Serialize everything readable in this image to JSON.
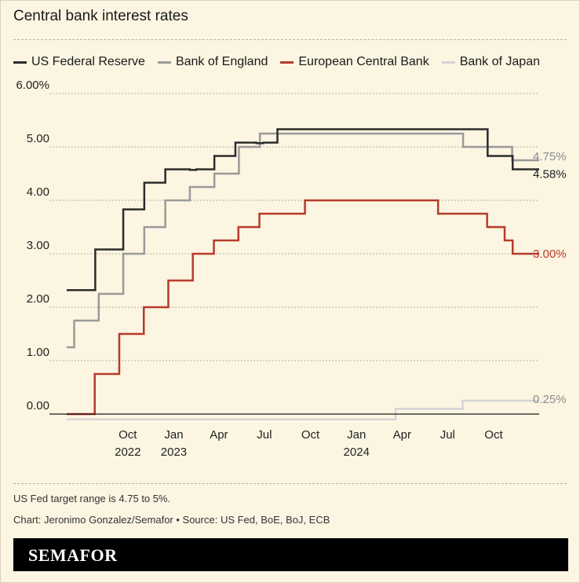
{
  "title": "Central bank interest rates",
  "note": "US Fed target range is 4.75 to 5%.",
  "credit": "Chart: Jeronimo Gonzalez/Semafor • Source: US Fed, BoE, BoJ, ECB",
  "brand": "SEMAFOR",
  "chart_data": {
    "type": "line",
    "step": true,
    "title": "Central bank interest rates",
    "xlabel": "",
    "ylabel": "",
    "x_range": [
      "2022-06-01",
      "2024-12-31"
    ],
    "ylim": [
      0,
      6
    ],
    "y_ticks": [
      {
        "value": 0,
        "label": "0.00"
      },
      {
        "value": 1,
        "label": "1.00"
      },
      {
        "value": 2,
        "label": "2.00"
      },
      {
        "value": 3,
        "label": "3.00"
      },
      {
        "value": 4,
        "label": "4.00"
      },
      {
        "value": 5,
        "label": "5.00"
      },
      {
        "value": 6,
        "label": "6.00%"
      }
    ],
    "x_ticks": [
      {
        "date": "2022-10-01",
        "label": "Oct",
        "year": "2022"
      },
      {
        "date": "2023-01-01",
        "label": "Jan",
        "year": "2023"
      },
      {
        "date": "2023-04-01",
        "label": "Apr",
        "year": ""
      },
      {
        "date": "2023-07-01",
        "label": "Jul",
        "year": ""
      },
      {
        "date": "2023-10-01",
        "label": "Oct",
        "year": ""
      },
      {
        "date": "2024-01-01",
        "label": "Jan",
        "year": "2024"
      },
      {
        "date": "2024-04-01",
        "label": "Apr",
        "year": ""
      },
      {
        "date": "2024-07-01",
        "label": "Jul",
        "year": ""
      },
      {
        "date": "2024-10-01",
        "label": "Oct",
        "year": ""
      }
    ],
    "grid": "horizontal dotted",
    "legend_position": "top",
    "series": [
      {
        "name": "US Federal Reserve",
        "color": "#2b2b2b",
        "end_label": "4.58%",
        "points": [
          [
            "2022-06-01",
            2.32
          ],
          [
            "2022-07-28",
            3.08
          ],
          [
            "2022-09-22",
            3.83
          ],
          [
            "2022-11-03",
            4.33
          ],
          [
            "2022-12-15",
            4.58
          ],
          [
            "2023-02-02",
            4.57
          ],
          [
            "2023-02-15",
            4.58
          ],
          [
            "2023-03-23",
            4.83
          ],
          [
            "2023-05-04",
            5.08
          ],
          [
            "2023-06-15",
            5.07
          ],
          [
            "2023-06-29",
            5.08
          ],
          [
            "2023-07-27",
            5.33
          ],
          [
            "2024-09-19",
            4.83
          ],
          [
            "2024-11-08",
            4.58
          ],
          [
            "2024-12-31",
            4.58
          ]
        ]
      },
      {
        "name": "Bank of England",
        "color": "#9a9a9a",
        "end_label": "4.75%",
        "points": [
          [
            "2022-06-01",
            1.25
          ],
          [
            "2022-06-16",
            1.75
          ],
          [
            "2022-08-04",
            2.25
          ],
          [
            "2022-09-22",
            3.0
          ],
          [
            "2022-11-03",
            3.5
          ],
          [
            "2022-12-15",
            4.0
          ],
          [
            "2023-02-02",
            4.25
          ],
          [
            "2023-03-23",
            4.5
          ],
          [
            "2023-05-11",
            5.0
          ],
          [
            "2023-06-22",
            5.25
          ],
          [
            "2024-08-01",
            5.0
          ],
          [
            "2024-11-07",
            4.75
          ],
          [
            "2024-12-31",
            4.75
          ]
        ]
      },
      {
        "name": "European Central Bank",
        "color": "#b83a2b",
        "end_label": "3.00%",
        "points": [
          [
            "2022-06-01",
            0.0
          ],
          [
            "2022-07-27",
            0.75
          ],
          [
            "2022-09-14",
            1.5
          ],
          [
            "2022-11-02",
            2.0
          ],
          [
            "2022-12-21",
            2.5
          ],
          [
            "2023-02-08",
            3.0
          ],
          [
            "2023-03-22",
            3.25
          ],
          [
            "2023-05-10",
            3.5
          ],
          [
            "2023-06-21",
            3.75
          ],
          [
            "2023-09-20",
            4.0
          ],
          [
            "2024-06-12",
            3.75
          ],
          [
            "2024-09-18",
            3.5
          ],
          [
            "2024-10-23",
            3.25
          ],
          [
            "2024-11-08",
            3.0
          ],
          [
            "2024-12-31",
            3.0
          ]
        ]
      },
      {
        "name": "Bank of Japan",
        "color": "#d4d4d4",
        "end_label": "0.25%",
        "points": [
          [
            "2022-06-01",
            -0.1
          ],
          [
            "2024-03-19",
            0.1
          ],
          [
            "2024-07-31",
            0.25
          ],
          [
            "2024-12-31",
            0.25
          ]
        ]
      }
    ]
  }
}
